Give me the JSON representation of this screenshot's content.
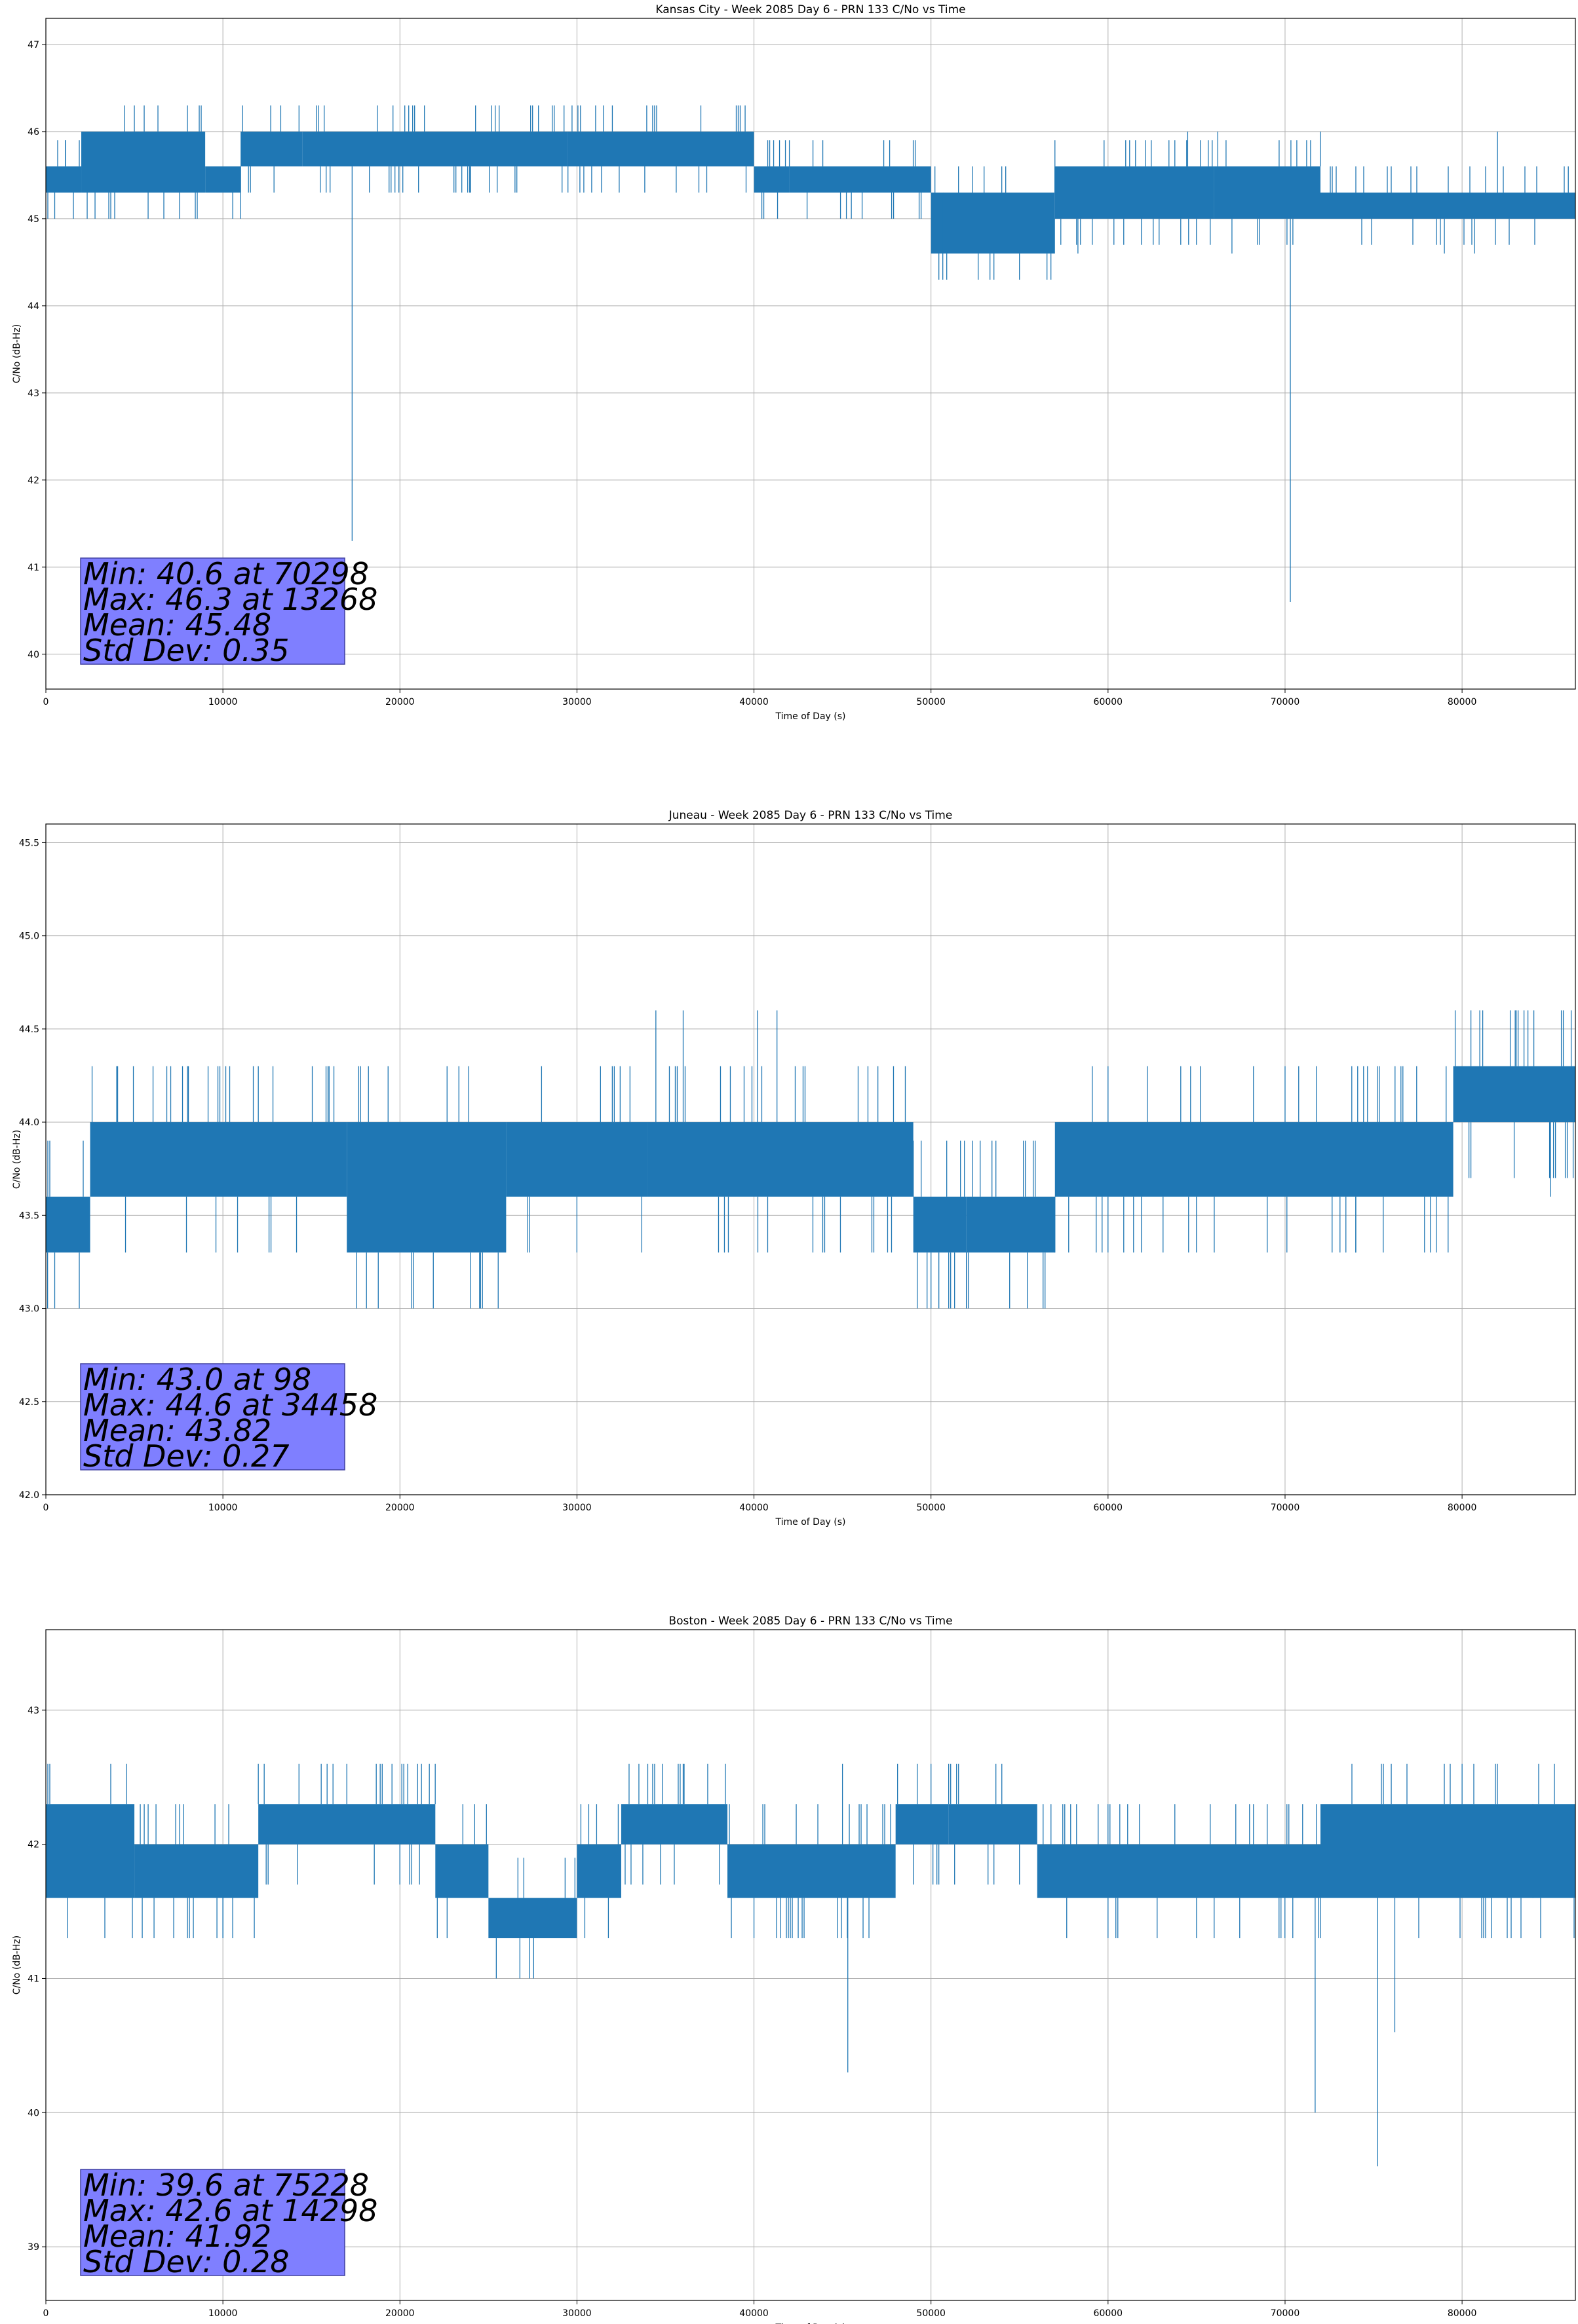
{
  "chart_data": [
    {
      "type": "line",
      "title": "Kansas City - Week 2085 Day 6 - PRN 133 C/No vs Time",
      "xlabel": "Time of Day (s)",
      "ylabel": "C/No (dB-Hz)",
      "xlim": [
        0,
        86400
      ],
      "ylim": [
        39.6,
        47.3
      ],
      "xticks": [
        0,
        10000,
        20000,
        30000,
        40000,
        50000,
        60000,
        70000,
        80000
      ],
      "yticks": [
        40,
        41,
        42,
        43,
        44,
        45,
        46,
        47
      ],
      "grid": true,
      "line_color": "#1f77b4",
      "series": [
        {
          "bands": [
            {
              "x": [
                0,
                2000
              ],
              "low": 45.3,
              "high": 45.6
            },
            {
              "x": [
                2000,
                9000
              ],
              "low": 45.3,
              "high": 46.0
            },
            {
              "x": [
                9000,
                11000
              ],
              "low": 45.3,
              "high": 45.6
            },
            {
              "x": [
                11000,
                14500
              ],
              "low": 45.6,
              "high": 46.0
            },
            {
              "x": [
                14500,
                29500
              ],
              "low": 45.6,
              "high": 46.0
            },
            {
              "x": [
                29500,
                36000
              ],
              "low": 45.6,
              "high": 46.0
            },
            {
              "x": [
                36000,
                40000
              ],
              "low": 45.6,
              "high": 46.0
            },
            {
              "x": [
                40000,
                42000
              ],
              "low": 45.3,
              "high": 45.6
            },
            {
              "x": [
                42000,
                50000
              ],
              "low": 45.3,
              "high": 45.6
            },
            {
              "x": [
                50000,
                57000
              ],
              "low": 44.6,
              "high": 45.3
            },
            {
              "x": [
                57000,
                66000
              ],
              "low": 45.0,
              "high": 45.6
            },
            {
              "x": [
                66000,
                72000
              ],
              "low": 45.0,
              "high": 45.6
            },
            {
              "x": [
                72000,
                86400
              ],
              "low": 45.0,
              "high": 45.3
            }
          ],
          "spikes": [
            {
              "x": 500,
              "y": 45.0
            },
            {
              "x": 1100,
              "y": 45.9
            },
            {
              "x": 12700,
              "y": 46.3
            },
            {
              "x": 13268,
              "y": 46.3
            },
            {
              "x": 14300,
              "y": 46.3
            },
            {
              "x": 17300,
              "y": 41.3
            },
            {
              "x": 19500,
              "y": 45.3
            },
            {
              "x": 24000,
              "y": 45.3
            },
            {
              "x": 26500,
              "y": 45.3
            },
            {
              "x": 30200,
              "y": 46.3
            },
            {
              "x": 32000,
              "y": 46.3
            },
            {
              "x": 34500,
              "y": 46.3
            },
            {
              "x": 37000,
              "y": 46.3
            },
            {
              "x": 39500,
              "y": 46.3
            },
            {
              "x": 43000,
              "y": 45.0
            },
            {
              "x": 45500,
              "y": 45.0
            },
            {
              "x": 50700,
              "y": 44.6
            },
            {
              "x": 58300,
              "y": 44.6
            },
            {
              "x": 64500,
              "y": 46.0
            },
            {
              "x": 66200,
              "y": 46.0
            },
            {
              "x": 67000,
              "y": 44.6
            },
            {
              "x": 70298,
              "y": 40.6
            },
            {
              "x": 72000,
              "y": 46.0
            },
            {
              "x": 79000,
              "y": 44.6
            },
            {
              "x": 80700,
              "y": 44.6
            },
            {
              "x": 82000,
              "y": 46.0
            },
            {
              "x": 86000,
              "y": 45.6
            }
          ]
        }
      ],
      "stats": {
        "min": "Min: 40.6 at 70298",
        "max": "Max: 46.3 at 13268",
        "mean": "Mean: 45.48",
        "std": "Std Dev: 0.35"
      }
    },
    {
      "type": "line",
      "title": "Juneau - Week 2085 Day 6 - PRN 133 C/No vs Time",
      "xlabel": "Time of Day (s)",
      "ylabel": "C/No (dB-Hz)",
      "xlim": [
        0,
        86400
      ],
      "ylim": [
        42.0,
        45.6
      ],
      "xticks": [
        0,
        10000,
        20000,
        30000,
        40000,
        50000,
        60000,
        70000,
        80000
      ],
      "yticks": [
        42.0,
        42.5,
        43.0,
        43.5,
        44.0,
        44.5,
        45.0,
        45.5
      ],
      "grid": true,
      "line_color": "#1f77b4",
      "series": [
        {
          "bands": [
            {
              "x": [
                0,
                2500
              ],
              "low": 43.3,
              "high": 43.6
            },
            {
              "x": [
                2500,
                17000
              ],
              "low": 43.6,
              "high": 44.0
            },
            {
              "x": [
                17000,
                26000
              ],
              "low": 43.3,
              "high": 44.0
            },
            {
              "x": [
                26000,
                34000
              ],
              "low": 43.6,
              "high": 44.0
            },
            {
              "x": [
                34000,
                49000
              ],
              "low": 43.6,
              "high": 44.0
            },
            {
              "x": [
                49000,
                52000
              ],
              "low": 43.3,
              "high": 43.6
            },
            {
              "x": [
                52000,
                57000
              ],
              "low": 43.3,
              "high": 43.6
            },
            {
              "x": [
                57000,
                79500
              ],
              "low": 43.6,
              "high": 44.0
            },
            {
              "x": [
                79500,
                86400
              ],
              "low": 44.0,
              "high": 44.3
            }
          ],
          "spikes": [
            {
              "x": 98,
              "y": 43.0
            },
            {
              "x": 500,
              "y": 43.0
            },
            {
              "x": 4000,
              "y": 44.3
            },
            {
              "x": 8000,
              "y": 44.3
            },
            {
              "x": 12000,
              "y": 44.3
            },
            {
              "x": 16000,
              "y": 44.3
            },
            {
              "x": 24000,
              "y": 43.0
            },
            {
              "x": 24500,
              "y": 43.0
            },
            {
              "x": 28000,
              "y": 44.3
            },
            {
              "x": 34458,
              "y": 44.6
            },
            {
              "x": 36000,
              "y": 44.6
            },
            {
              "x": 40200,
              "y": 44.6
            },
            {
              "x": 41300,
              "y": 44.6
            },
            {
              "x": 47000,
              "y": 44.3
            },
            {
              "x": 50000,
              "y": 43.0
            },
            {
              "x": 51000,
              "y": 43.0
            },
            {
              "x": 52000,
              "y": 43.0
            },
            {
              "x": 60000,
              "y": 44.3
            },
            {
              "x": 66000,
              "y": 43.3
            },
            {
              "x": 70000,
              "y": 44.3
            },
            {
              "x": 74000,
              "y": 43.3
            },
            {
              "x": 80500,
              "y": 44.6
            },
            {
              "x": 81000,
              "y": 44.6
            },
            {
              "x": 83000,
              "y": 44.6
            },
            {
              "x": 85000,
              "y": 43.6
            }
          ]
        }
      ],
      "stats": {
        "min": "Min: 43.0 at 98",
        "max": "Max: 44.6 at 34458",
        "mean": "Mean: 43.82",
        "std": "Std Dev: 0.27"
      }
    },
    {
      "type": "line",
      "title": "Boston - Week 2085 Day 6 - PRN 133 C/No vs Time",
      "xlabel": "Time of Day (s)",
      "ylabel": "C/No (dB-Hz)",
      "xlim": [
        0,
        86400
      ],
      "ylim": [
        38.6,
        43.6
      ],
      "xticks": [
        0,
        10000,
        20000,
        30000,
        40000,
        50000,
        60000,
        70000,
        80000
      ],
      "yticks": [
        39,
        40,
        41,
        42,
        43
      ],
      "grid": true,
      "line_color": "#1f77b4",
      "series": [
        {
          "bands": [
            {
              "x": [
                0,
                5000
              ],
              "low": 41.6,
              "high": 42.3
            },
            {
              "x": [
                5000,
                12000
              ],
              "low": 41.6,
              "high": 42.0
            },
            {
              "x": [
                12000,
                22000
              ],
              "low": 42.0,
              "high": 42.3
            },
            {
              "x": [
                22000,
                25000
              ],
              "low": 41.6,
              "high": 42.0
            },
            {
              "x": [
                25000,
                30000
              ],
              "low": 41.3,
              "high": 41.6
            },
            {
              "x": [
                30000,
                32500
              ],
              "low": 41.6,
              "high": 42.0
            },
            {
              "x": [
                32500,
                38500
              ],
              "low": 42.0,
              "high": 42.3
            },
            {
              "x": [
                38500,
                48000
              ],
              "low": 41.6,
              "high": 42.0
            },
            {
              "x": [
                48000,
                51000
              ],
              "low": 42.0,
              "high": 42.3
            },
            {
              "x": [
                51000,
                56000
              ],
              "low": 42.0,
              "high": 42.3
            },
            {
              "x": [
                56000,
                72000
              ],
              "low": 41.6,
              "high": 42.0
            },
            {
              "x": [
                72000,
                86400
              ],
              "low": 41.6,
              "high": 42.3
            }
          ],
          "spikes": [
            {
              "x": 8000,
              "y": 41.3
            },
            {
              "x": 10000,
              "y": 41.3
            },
            {
              "x": 14298,
              "y": 42.6
            },
            {
              "x": 17000,
              "y": 42.6
            },
            {
              "x": 19000,
              "y": 42.6
            },
            {
              "x": 21000,
              "y": 42.6
            },
            {
              "x": 34000,
              "y": 42.6
            },
            {
              "x": 36000,
              "y": 42.6
            },
            {
              "x": 40000,
              "y": 41.3
            },
            {
              "x": 45000,
              "y": 42.6
            },
            {
              "x": 45300,
              "y": 40.3
            },
            {
              "x": 50000,
              "y": 42.6
            },
            {
              "x": 54000,
              "y": 42.6
            },
            {
              "x": 60000,
              "y": 41.3
            },
            {
              "x": 65000,
              "y": 41.3
            },
            {
              "x": 71700,
              "y": 40.0
            },
            {
              "x": 75228,
              "y": 39.6
            },
            {
              "x": 76000,
              "y": 42.6
            },
            {
              "x": 76200,
              "y": 40.6
            },
            {
              "x": 80000,
              "y": 42.6
            },
            {
              "x": 84000,
              "y": 41.6
            }
          ]
        }
      ],
      "stats": {
        "min": "Min: 39.6 at 75228",
        "max": "Max: 42.6 at 14298",
        "mean": "Mean: 41.92",
        "std": "Std Dev: 0.28"
      }
    }
  ],
  "colors": {
    "line": "#1f77b4",
    "grid": "#b0b0b0",
    "stats_box_fill": "#7f7fff",
    "stats_box_stroke": "#4040a0"
  }
}
